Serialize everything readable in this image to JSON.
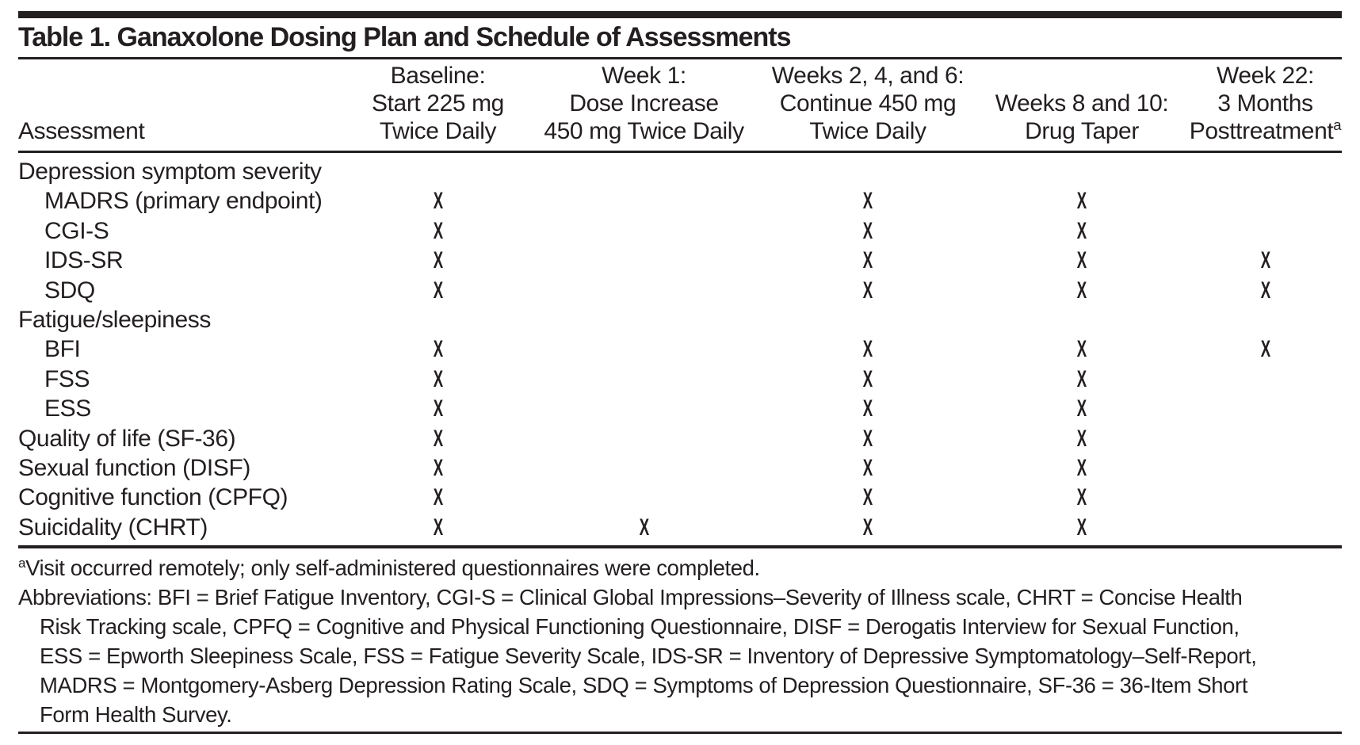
{
  "title": "Table 1. Ganaxolone Dosing Plan and Schedule of Assessments",
  "table": {
    "row_header_label": "Assessment",
    "columns": [
      {
        "lines": [
          "Baseline:",
          "Start 225 mg",
          "Twice Daily"
        ]
      },
      {
        "lines": [
          "Week 1:",
          "Dose Increase",
          "450 mg Twice Daily"
        ]
      },
      {
        "lines": [
          "Weeks 2, 4, and 6:",
          "Continue 450 mg",
          "Twice Daily"
        ]
      },
      {
        "lines": [
          "Weeks 8 and 10:",
          "Drug Taper"
        ]
      },
      {
        "lines": [
          "Week 22:",
          "3 Months",
          "Posttreatment^a"
        ]
      }
    ],
    "mark_glyph": "X",
    "rows": [
      {
        "label": "Depression symptom severity",
        "indent": false,
        "marks": [
          "",
          "",
          "",
          "",
          ""
        ]
      },
      {
        "label": "MADRS (primary endpoint)",
        "indent": true,
        "marks": [
          "X",
          "",
          "X",
          "X",
          ""
        ]
      },
      {
        "label": "CGI-S",
        "indent": true,
        "marks": [
          "X",
          "",
          "X",
          "X",
          ""
        ]
      },
      {
        "label": "IDS-SR",
        "indent": true,
        "marks": [
          "X",
          "",
          "X",
          "X",
          "X"
        ]
      },
      {
        "label": "SDQ",
        "indent": true,
        "marks": [
          "X",
          "",
          "X",
          "X",
          "X"
        ]
      },
      {
        "label": "Fatigue/sleepiness",
        "indent": false,
        "marks": [
          "",
          "",
          "",
          "",
          ""
        ]
      },
      {
        "label": "BFI",
        "indent": true,
        "marks": [
          "X",
          "",
          "X",
          "X",
          "X"
        ]
      },
      {
        "label": "FSS",
        "indent": true,
        "marks": [
          "X",
          "",
          "X",
          "X",
          ""
        ]
      },
      {
        "label": "ESS",
        "indent": true,
        "marks": [
          "X",
          "",
          "X",
          "X",
          ""
        ]
      },
      {
        "label": "Quality of life (SF-36)",
        "indent": false,
        "marks": [
          "X",
          "",
          "X",
          "X",
          ""
        ]
      },
      {
        "label": "Sexual function (DISF)",
        "indent": false,
        "marks": [
          "X",
          "",
          "X",
          "X",
          ""
        ]
      },
      {
        "label": "Cognitive function (CPFQ)",
        "indent": false,
        "marks": [
          "X",
          "",
          "X",
          "X",
          ""
        ]
      },
      {
        "label": "Suicidality (CHRT)",
        "indent": false,
        "marks": [
          "X",
          "X",
          "X",
          "X",
          ""
        ]
      }
    ]
  },
  "footnotes": {
    "visit_note": "^aVisit occurred remotely; only self-administered questionnaires were completed.",
    "abbreviations_lines": [
      "Abbreviations: BFI = Brief Fatigue Inventory, CGI-S = Clinical Global Impressions–Severity of Illness scale, CHRT = Concise Health",
      "Risk Tracking scale, CPFQ = Cognitive and Physical Functioning Questionnaire, DISF = Derogatis Interview for Sexual Function,",
      "ESS = Epworth Sleepiness Scale, FSS = Fatigue Severity Scale, IDS-SR = Inventory of Depressive Symptomatology–Self-Report,",
      "MADRS = Montgomery-Asberg Depression Rating Scale, SDQ = Symptoms of Depression Questionnaire, SF-36 = 36-Item Short",
      "Form Health Survey."
    ]
  },
  "colors": {
    "text": "#231f20",
    "rule": "#231f20",
    "background": "#ffffff"
  }
}
